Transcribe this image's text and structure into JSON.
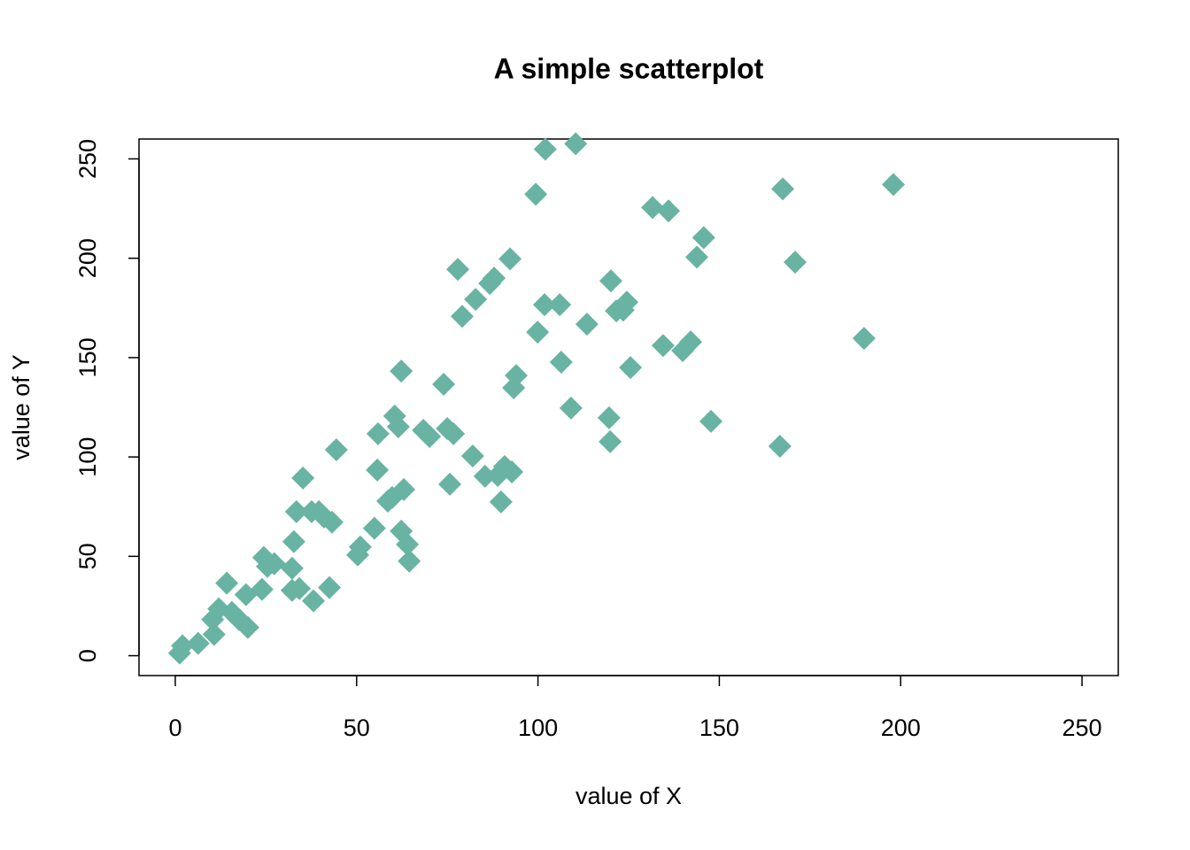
{
  "chart_data": {
    "type": "scatter",
    "title": "A simple scatterplot",
    "x_label": "value of X",
    "y_label": "value of Y",
    "color": "#69b3a2",
    "xlim": [
      -10,
      260
    ],
    "ylim": [
      -10,
      260
    ],
    "xticks": [
      0,
      50,
      100,
      150,
      200,
      250
    ],
    "yticks": [
      0,
      50,
      100,
      150,
      200,
      250
    ],
    "x": [
      1.2,
      2,
      6.3,
      10.7,
      10.3,
      12,
      14.2,
      15.6,
      17.6,
      19.5,
      20,
      23.9,
      24.4,
      25.4,
      27.3,
      32.2,
      32.7,
      33.4,
      32.2,
      34.2,
      35.2,
      37.6,
      38.1,
      39.6,
      41,
      43.2,
      42.5,
      44.4,
      50.3,
      51,
      54.9,
      55.7,
      55.9,
      58.6,
      59.8,
      60.5,
      61.5,
      62.3,
      62.3,
      63,
      64,
      64.5,
      68.4,
      70.1,
      74,
      75,
      75.7,
      76.7,
      77.9,
      79.1,
      82,
      82.8,
      85.4,
      86.7,
      87.9,
      88.9,
      89.8,
      90.8,
      92.8,
      92.3,
      93.3,
      94,
      99.4,
      99.9,
      102,
      101.8,
      106,
      106.4,
      109.1,
      110.4,
      113.5,
      119.6,
      120.1,
      119.9,
      121.6,
      123.5,
      124.5,
      125.5,
      131.6,
      136,
      134.5,
      139.9,
      142.1,
      143.8,
      145.7,
      147.7,
      166.7,
      167.5,
      170.9,
      189.9,
      198
    ],
    "values": [
      1.3,
      5,
      6.2,
      10.7,
      18.2,
      23.6,
      36.5,
      21.8,
      18.2,
      30.7,
      14.2,
      33.4,
      49.4,
      44.9,
      46.3,
      44,
      57.4,
      72.5,
      32.9,
      33.8,
      89.4,
      72.5,
      27.6,
      72.5,
      69.8,
      67.2,
      34.3,
      103.6,
      50.7,
      54.7,
      64.1,
      93.4,
      111.7,
      77.8,
      79.6,
      120.6,
      115.2,
      143.2,
      62.7,
      83.6,
      56,
      47.6,
      113.4,
      110.3,
      136.6,
      114.3,
      86.3,
      111.7,
      194.4,
      170.8,
      100.5,
      179.3,
      90.3,
      187.3,
      190,
      90.7,
      77.4,
      95.2,
      92.5,
      199.7,
      134.8,
      141,
      232.2,
      162.8,
      254.9,
      176.6,
      176.6,
      147.7,
      124.6,
      257.6,
      166.8,
      119.7,
      188.6,
      107.7,
      173.5,
      173.9,
      177.9,
      145,
      225.5,
      223.8,
      156.1,
      153.5,
      157.9,
      200.6,
      210.4,
      117.9,
      105.4,
      234.9,
      198,
      159.7,
      237.1
    ]
  }
}
